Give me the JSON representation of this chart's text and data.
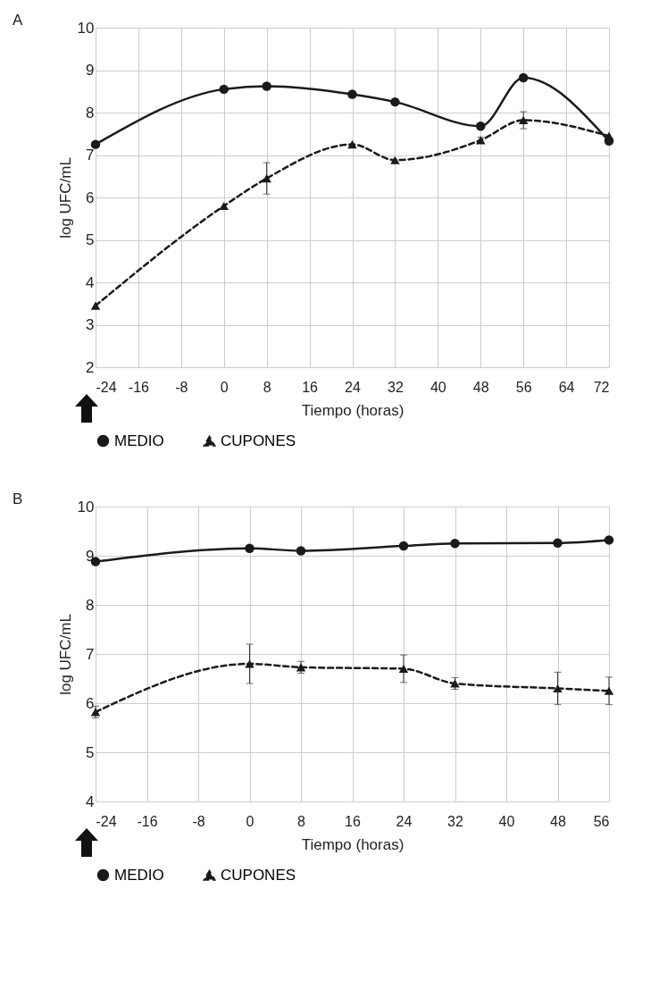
{
  "chart_data": [
    {
      "type": "line",
      "title": "A",
      "xlabel": "Tiempo (horas)",
      "ylabel": "log UFC/mL",
      "x": [
        -24,
        0,
        8,
        24,
        32,
        48,
        56,
        72
      ],
      "xlim": [
        -24,
        72
      ],
      "xticks": [
        -24,
        -16,
        -8,
        0,
        8,
        16,
        24,
        32,
        40,
        48,
        56,
        64,
        72
      ],
      "ylim": [
        2,
        10
      ],
      "yticks": [
        2,
        3,
        4,
        5,
        6,
        7,
        8,
        9,
        10
      ],
      "grid": true,
      "legend": "bottom",
      "series": [
        {
          "name": "MEDIO",
          "color": "#1a1a1a",
          "marker": "circle",
          "line_style": "solid",
          "values": [
            7.25,
            8.55,
            8.62,
            8.43,
            8.25,
            7.68,
            8.82,
            7.33
          ]
        },
        {
          "name": "CUPONES",
          "color": "#1a1a1a",
          "marker": "triangle",
          "line_style": "dashed",
          "values": [
            3.45,
            5.8,
            6.45,
            7.25,
            6.88,
            7.35,
            7.82,
            7.45
          ],
          "errors": [
            null,
            null,
            0.37,
            null,
            null,
            0.07,
            0.2,
            null
          ]
        }
      ]
    },
    {
      "type": "line",
      "title": "B",
      "xlabel": "Tiempo (horas)",
      "ylabel": "log UFC/mL",
      "x": [
        -24,
        0,
        8,
        24,
        32,
        48,
        56
      ],
      "xlim": [
        -24,
        56
      ],
      "xticks": [
        -24,
        -16,
        -8,
        0,
        8,
        16,
        24,
        32,
        40,
        48,
        56
      ],
      "ylim": [
        4,
        10
      ],
      "yticks": [
        4,
        5,
        6,
        7,
        8,
        9,
        10
      ],
      "grid": true,
      "legend": "bottom",
      "series": [
        {
          "name": "MEDIO",
          "color": "#1a1a1a",
          "marker": "circle",
          "line_style": "solid",
          "values": [
            8.88,
            9.15,
            9.1,
            9.2,
            9.25,
            9.26,
            9.32
          ]
        },
        {
          "name": "CUPONES",
          "color": "#1a1a1a",
          "marker": "triangle",
          "line_style": "dashed",
          "values": [
            5.82,
            6.8,
            6.73,
            6.7,
            6.4,
            6.3,
            6.25
          ],
          "errors": [
            0.12,
            0.4,
            0.12,
            0.28,
            0.12,
            0.33,
            0.28
          ]
        }
      ]
    }
  ]
}
